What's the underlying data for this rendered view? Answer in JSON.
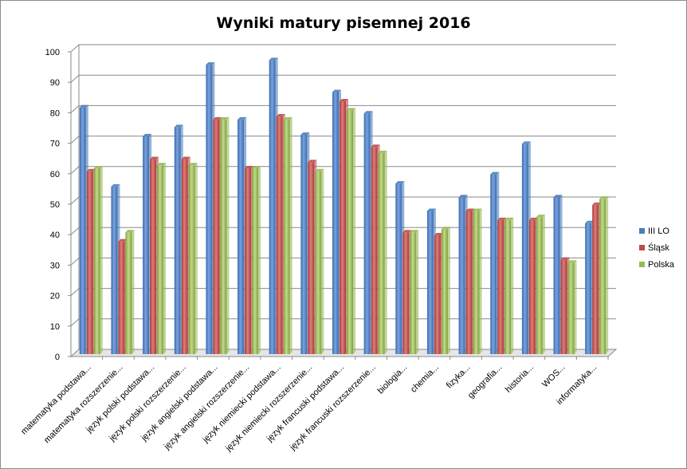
{
  "chart_data": {
    "type": "bar",
    "title": "Wyniki matury pisemnej 2016",
    "xlabel": "",
    "ylabel": "",
    "ylim": [
      0,
      100
    ],
    "yticks": [
      0,
      10,
      20,
      30,
      40,
      50,
      60,
      70,
      80,
      90,
      100
    ],
    "grid": true,
    "legend_position": "right",
    "categories": [
      "matematyka podstawa...",
      "matematyka rozszerzenie...",
      "język polski podstawa...",
      "język polski rozszerzenie...",
      "język angielski podstawa...",
      "język angielski rozszerzenie...",
      "język niemiecki podstawa...",
      "język niemiecki rozszerzenie...",
      "język francuski podstawa...",
      "język francuski rozszerzenie...",
      "biologia...",
      "chemia...",
      "fizyka...",
      "geografia...",
      "historia...",
      "WOS...",
      "informatyka..."
    ],
    "series": [
      {
        "name": "III LO",
        "color": "#4a7ebb",
        "values": [
          81,
          55,
          71.5,
          74.5,
          95,
          77,
          96.5,
          72,
          86,
          79,
          56,
          47,
          51.5,
          59,
          69,
          51.5,
          43
        ]
      },
      {
        "name": "Śląsk",
        "color": "#be4b48",
        "values": [
          60,
          37,
          64,
          64,
          77,
          61,
          78,
          63,
          83,
          68,
          40,
          39,
          47,
          44,
          44,
          31,
          49
        ]
      },
      {
        "name": "Polska",
        "color": "#98b954",
        "values": [
          61,
          40,
          62,
          62,
          77,
          61,
          77,
          60,
          80,
          66,
          40,
          41,
          47,
          44,
          45,
          30,
          51
        ]
      }
    ]
  }
}
